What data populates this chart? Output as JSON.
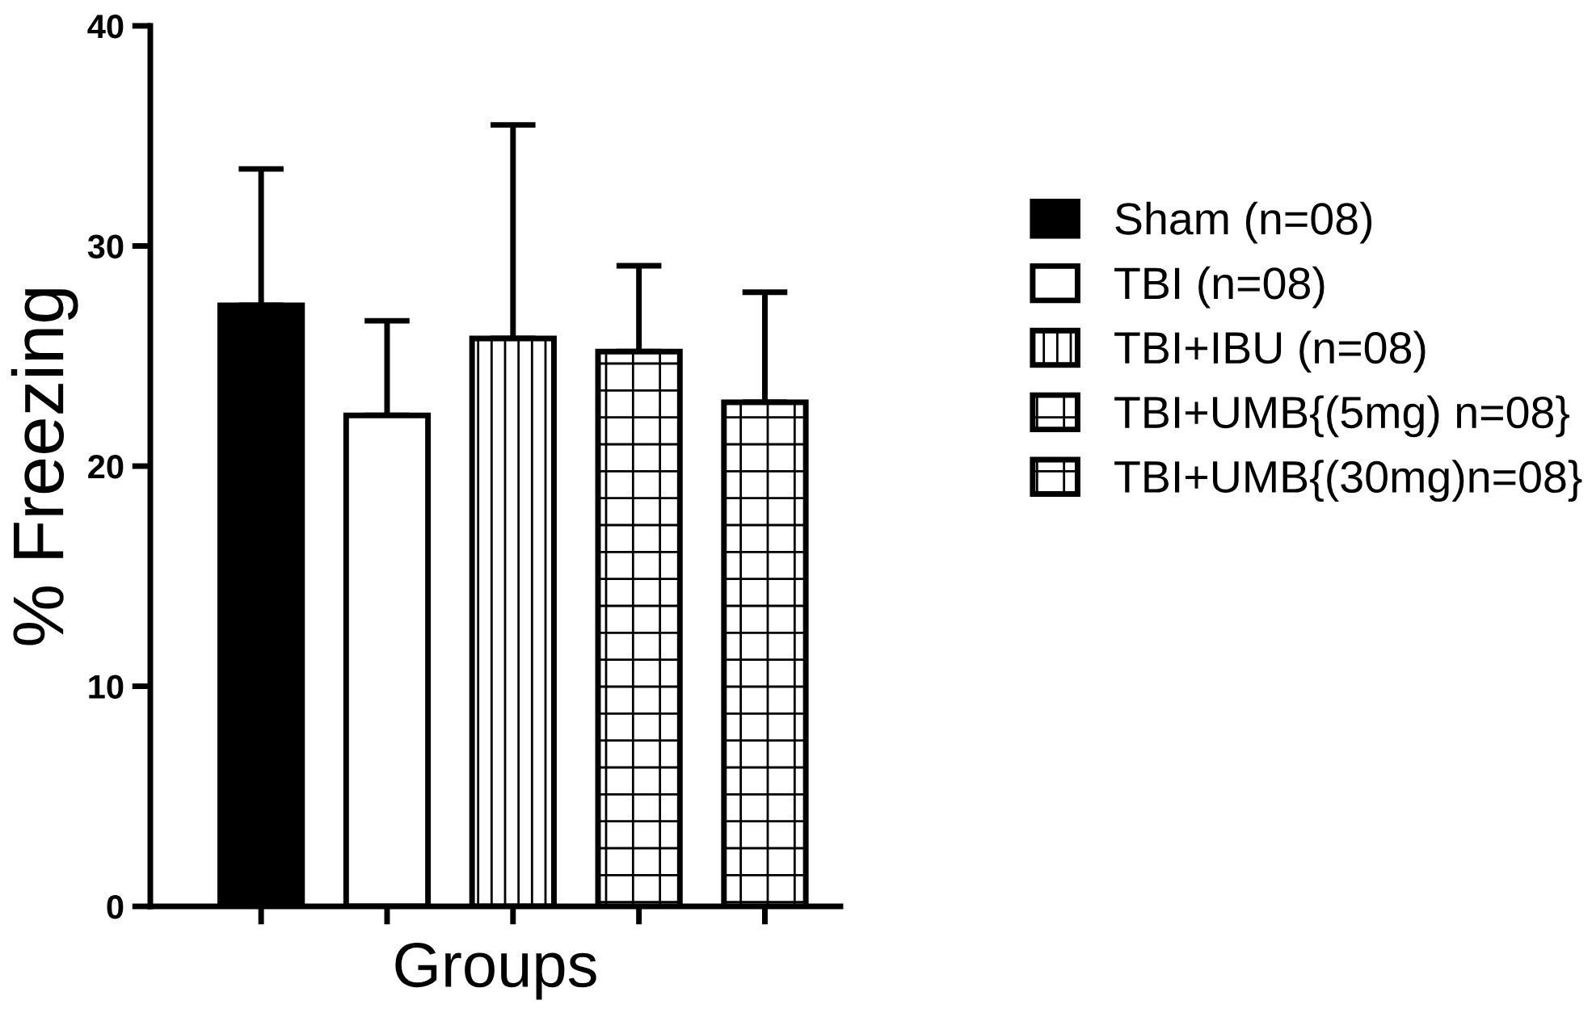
{
  "chart_data": {
    "type": "bar",
    "xlabel": "Groups",
    "ylabel": "% Freezing",
    "categories": [
      null,
      null,
      null,
      null,
      null
    ],
    "series": [
      {
        "name": "Sham (n=08)",
        "color": "#000000",
        "values": [
          27.3,
          null,
          null,
          null,
          null
        ],
        "errors": [
          [
            27.3,
            33.5
          ],
          null,
          null,
          null,
          null
        ]
      },
      {
        "name": "TBI (n=08)",
        "color": "#ffffff",
        "values": [
          null,
          22.3,
          null,
          null,
          null
        ],
        "errors": [
          null,
          [
            22.3,
            26.6
          ],
          null,
          null,
          null
        ]
      },
      {
        "name": "TBI+IBU (n=08)",
        "color": "#ffffff",
        "values": [
          null,
          null,
          25.8,
          null,
          null
        ],
        "errors": [
          null,
          null,
          [
            25.8,
            35.5
          ],
          null,
          null
        ]
      },
      {
        "name": "TBI+UMB{(5mg) n=08}",
        "color": "#ffffff",
        "values": [
          null,
          null,
          null,
          25.2,
          null
        ],
        "errors": [
          null,
          null,
          null,
          [
            25.2,
            29.1
          ],
          null
        ]
      },
      {
        "name": "TBI+UMB{(30mg)n=08}",
        "color": "#ffffff",
        "values": [
          null,
          null,
          null,
          null,
          22.9
        ],
        "errors": [
          null,
          null,
          null,
          null,
          [
            22.9,
            27.9
          ]
        ]
      }
    ],
    "ylim": [
      0,
      40
    ],
    "yticks": [
      0,
      10,
      20,
      30,
      40
    ],
    "grid": false,
    "legend": "right"
  }
}
